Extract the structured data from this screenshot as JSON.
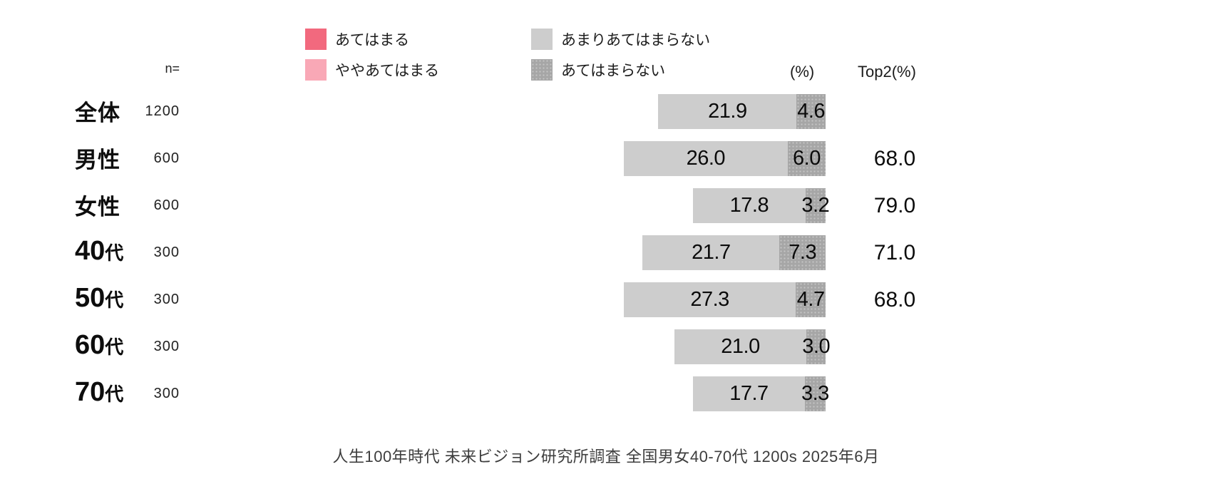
{
  "colors": {
    "atehamaru": "#f2697e",
    "yaya_atehamaru": "#f9a8b6",
    "amari_atehamaranai": "#cdcdcd",
    "atehamaranai": "#a6a6a6",
    "text": "#0d0d0d",
    "footer_text": "#3d3d3d",
    "background": "#ffffff"
  },
  "legend": [
    {
      "name": "atehamaru",
      "label": "あてはまる"
    },
    {
      "name": "yaya-atehamaru",
      "label": "ややあてはまる"
    },
    {
      "name": "amari-atehamaranai",
      "label": "あまりあてはまらない"
    },
    {
      "name": "atehamaranai",
      "label": "あてはまらない"
    }
  ],
  "headers": {
    "n": "n=",
    "percent": "(%)",
    "top2": "Top2(%)"
  },
  "rows": [
    {
      "label_main": "全体",
      "label_suffix": "",
      "n": "1200",
      "amari": 21.9,
      "atehamaranai": 4.6,
      "top2": ""
    },
    {
      "label_main": "男性",
      "label_suffix": "",
      "n": "600",
      "amari": 26.0,
      "atehamaranai": 6.0,
      "top2": "68.0"
    },
    {
      "label_main": "女性",
      "label_suffix": "",
      "n": "600",
      "amari": 17.8,
      "atehamaranai": 3.2,
      "top2": "79.0"
    },
    {
      "label_main": "40",
      "label_suffix": "代",
      "n": "300",
      "amari": 21.7,
      "atehamaranai": 7.3,
      "top2": "71.0"
    },
    {
      "label_main": "50",
      "label_suffix": "代",
      "n": "300",
      "amari": 27.3,
      "atehamaranai": 4.7,
      "top2": "68.0"
    },
    {
      "label_main": "60",
      "label_suffix": "代",
      "n": "300",
      "amari": 21.0,
      "atehamaranai": 3.0,
      "top2": ""
    },
    {
      "label_main": "70",
      "label_suffix": "代",
      "n": "300",
      "amari": 17.7,
      "atehamaranai": 3.3,
      "top2": ""
    }
  ],
  "footer": "人生100年時代  未来ビジョン研究所調査  全国男女40-70代  1200s  2025年6月",
  "chart_data": {
    "type": "bar",
    "subtype": "stacked-horizontal-right-aligned",
    "unit": "(%)",
    "title": "",
    "categories": [
      "全体",
      "男性",
      "女性",
      "40代",
      "50代",
      "60代",
      "70代"
    ],
    "sample_sizes": [
      1200,
      600,
      600,
      300,
      300,
      300,
      300
    ],
    "series": [
      {
        "name": "あまりあてはまらない",
        "color": "#cdcdcd",
        "values": [
          21.9,
          26.0,
          17.8,
          21.7,
          27.3,
          21.0,
          17.7
        ]
      },
      {
        "name": "あてはまらない",
        "color": "#a6a6a6",
        "values": [
          4.6,
          6.0,
          3.2,
          7.3,
          4.7,
          3.0,
          3.3
        ]
      }
    ],
    "legend_entries": [
      "あてはまる",
      "ややあてはまる",
      "あまりあてはまらない",
      "あてはまらない"
    ],
    "legend_colors": [
      "#f2697e",
      "#f9a8b6",
      "#cdcdcd",
      "#a6a6a6"
    ],
    "top2_percent": [
      null,
      68.0,
      79.0,
      71.0,
      68.0,
      null,
      null
    ],
    "axis_max_percent": 100,
    "grid": false,
    "legend_position": "top",
    "source_note": "人生100年時代  未来ビジョン研究所調査  全国男女40-70代  1200s  2025年6月"
  }
}
